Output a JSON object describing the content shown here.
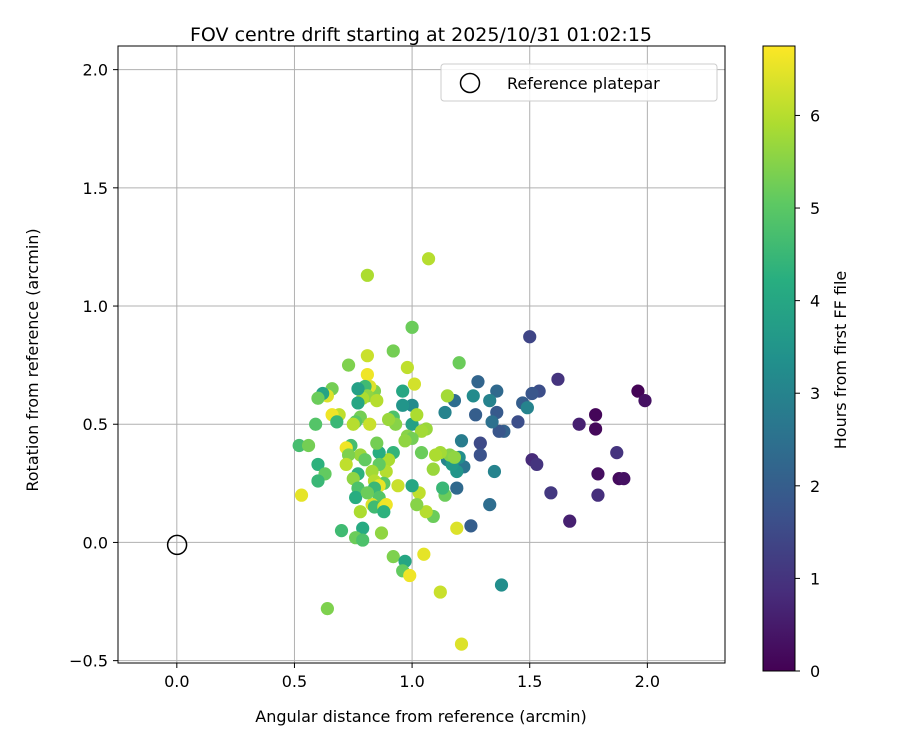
{
  "chart_data": {
    "type": "scatter",
    "title": "FOV centre drift starting at 2025/10/31 01:02:15",
    "xlabel": "Angular distance from reference (arcmin)",
    "ylabel": "Rotation from reference (arcmin)",
    "xlim": [
      -0.25,
      2.33
    ],
    "ylim": [
      -0.51,
      2.1
    ],
    "xticks": [
      0.0,
      0.5,
      1.0,
      1.5,
      2.0
    ],
    "xtick_labels": [
      "0.0",
      "0.5",
      "1.0",
      "1.5",
      "2.0"
    ],
    "yticks": [
      -0.5,
      0.0,
      0.5,
      1.0,
      1.5,
      2.0
    ],
    "ytick_labels": [
      "−0.5",
      "0.0",
      "0.5",
      "1.0",
      "1.5",
      "2.0"
    ],
    "grid": true,
    "legend": {
      "position": "top-right",
      "entries": [
        {
          "label": "Reference platepar",
          "marker": "open-circle"
        }
      ]
    },
    "reference_point": {
      "x": 0.0,
      "y": 0.0
    },
    "colorbar": {
      "label": "Hours from first FF file",
      "colormap": "viridis",
      "range": [
        0,
        6.75
      ],
      "ticks": [
        0,
        1,
        2,
        3,
        4,
        5,
        6
      ],
      "tick_labels": [
        "0",
        "1",
        "2",
        "3",
        "4",
        "5",
        "6"
      ]
    },
    "points": [
      {
        "x": 1.96,
        "y": 0.64,
        "t": 0.05
      },
      {
        "x": 1.99,
        "y": 0.6,
        "t": 0.3
      },
      {
        "x": 1.78,
        "y": 0.54,
        "t": 0.1
      },
      {
        "x": 1.78,
        "y": 0.48,
        "t": 0.15
      },
      {
        "x": 1.71,
        "y": 0.5,
        "t": 0.6
      },
      {
        "x": 1.88,
        "y": 0.27,
        "t": 0.2
      },
      {
        "x": 1.9,
        "y": 0.27,
        "t": 0.3
      },
      {
        "x": 1.79,
        "y": 0.29,
        "t": 0.25
      },
      {
        "x": 1.87,
        "y": 0.38,
        "t": 1.0
      },
      {
        "x": 1.79,
        "y": 0.2,
        "t": 0.9
      },
      {
        "x": 1.67,
        "y": 0.09,
        "t": 0.6
      },
      {
        "x": 1.59,
        "y": 0.21,
        "t": 1.1
      },
      {
        "x": 1.62,
        "y": 0.69,
        "t": 1.0
      },
      {
        "x": 1.5,
        "y": 0.87,
        "t": 1.4
      },
      {
        "x": 1.51,
        "y": 0.35,
        "t": 0.8
      },
      {
        "x": 1.53,
        "y": 0.33,
        "t": 1.0
      },
      {
        "x": 1.54,
        "y": 0.64,
        "t": 1.6
      },
      {
        "x": 1.51,
        "y": 0.63,
        "t": 1.8
      },
      {
        "x": 1.47,
        "y": 0.59,
        "t": 2.0
      },
      {
        "x": 1.49,
        "y": 0.57,
        "t": 3.0
      },
      {
        "x": 1.45,
        "y": 0.51,
        "t": 1.6
      },
      {
        "x": 1.39,
        "y": 0.47,
        "t": 2.1
      },
      {
        "x": 1.36,
        "y": 0.64,
        "t": 2.3
      },
      {
        "x": 1.36,
        "y": 0.55,
        "t": 1.9
      },
      {
        "x": 1.37,
        "y": 0.47,
        "t": 1.8
      },
      {
        "x": 1.34,
        "y": 0.51,
        "t": 2.5
      },
      {
        "x": 1.33,
        "y": 0.6,
        "t": 3.0
      },
      {
        "x": 1.28,
        "y": 0.68,
        "t": 2.2
      },
      {
        "x": 1.27,
        "y": 0.54,
        "t": 2.0
      },
      {
        "x": 1.26,
        "y": 0.62,
        "t": 3.2
      },
      {
        "x": 1.29,
        "y": 0.42,
        "t": 1.5
      },
      {
        "x": 1.29,
        "y": 0.37,
        "t": 1.7
      },
      {
        "x": 1.35,
        "y": 0.3,
        "t": 3.0
      },
      {
        "x": 1.33,
        "y": 0.16,
        "t": 2.4
      },
      {
        "x": 1.25,
        "y": 0.07,
        "t": 2.0
      },
      {
        "x": 1.38,
        "y": -0.18,
        "t": 3.3
      },
      {
        "x": 1.21,
        "y": 0.43,
        "t": 2.8
      },
      {
        "x": 1.22,
        "y": 0.32,
        "t": 2.6
      },
      {
        "x": 1.2,
        "y": 0.36,
        "t": 3.3
      },
      {
        "x": 1.19,
        "y": 0.3,
        "t": 3.5
      },
      {
        "x": 1.18,
        "y": 0.6,
        "t": 2.4
      },
      {
        "x": 1.19,
        "y": 0.23,
        "t": 2.3
      },
      {
        "x": 1.15,
        "y": 0.35,
        "t": 3.0
      },
      {
        "x": 1.17,
        "y": 0.33,
        "t": 3.6
      },
      {
        "x": 1.14,
        "y": 0.55,
        "t": 3.0
      },
      {
        "x": 1.2,
        "y": 0.76,
        "t": 5.2
      },
      {
        "x": 1.15,
        "y": 0.62,
        "t": 5.8
      },
      {
        "x": 1.16,
        "y": 0.37,
        "t": 5.5
      },
      {
        "x": 1.18,
        "y": 0.36,
        "t": 5.6
      },
      {
        "x": 1.14,
        "y": 0.2,
        "t": 5.2
      },
      {
        "x": 1.13,
        "y": 0.23,
        "t": 4.5
      },
      {
        "x": 1.12,
        "y": 0.38,
        "t": 5.8
      },
      {
        "x": 1.1,
        "y": 0.37,
        "t": 5.9
      },
      {
        "x": 1.09,
        "y": 0.31,
        "t": 5.7
      },
      {
        "x": 1.09,
        "y": 0.11,
        "t": 5.2
      },
      {
        "x": 1.06,
        "y": 0.13,
        "t": 6.0
      },
      {
        "x": 1.03,
        "y": 0.21,
        "t": 6.1
      },
      {
        "x": 1.02,
        "y": 0.16,
        "t": 5.5
      },
      {
        "x": 1.0,
        "y": 0.24,
        "t": 4.0
      },
      {
        "x": 1.07,
        "y": 1.2,
        "t": 6.0
      },
      {
        "x": 1.0,
        "y": 0.91,
        "t": 5.2
      },
      {
        "x": 1.01,
        "y": 0.67,
        "t": 6.3
      },
      {
        "x": 0.98,
        "y": 0.74,
        "t": 6.1
      },
      {
        "x": 0.96,
        "y": 0.64,
        "t": 4.0
      },
      {
        "x": 1.0,
        "y": 0.58,
        "t": 3.2
      },
      {
        "x": 0.96,
        "y": 0.58,
        "t": 3.5
      },
      {
        "x": 1.0,
        "y": 0.5,
        "t": 3.8
      },
      {
        "x": 1.02,
        "y": 0.54,
        "t": 5.9
      },
      {
        "x": 1.06,
        "y": 0.48,
        "t": 5.7
      },
      {
        "x": 1.04,
        "y": 0.47,
        "t": 5.8
      },
      {
        "x": 0.98,
        "y": 0.45,
        "t": 5.5
      },
      {
        "x": 1.0,
        "y": 0.44,
        "t": 5.3
      },
      {
        "x": 0.97,
        "y": 0.43,
        "t": 5.6
      },
      {
        "x": 1.04,
        "y": 0.38,
        "t": 5.2
      },
      {
        "x": 0.92,
        "y": 0.53,
        "t": 4.8
      },
      {
        "x": 0.93,
        "y": 0.5,
        "t": 5.5
      },
      {
        "x": 0.9,
        "y": 0.52,
        "t": 5.7
      },
      {
        "x": 0.92,
        "y": 0.38,
        "t": 4.4
      },
      {
        "x": 0.9,
        "y": 0.35,
        "t": 5.9
      },
      {
        "x": 0.89,
        "y": 0.3,
        "t": 6.0
      },
      {
        "x": 0.88,
        "y": 0.25,
        "t": 5.0
      },
      {
        "x": 0.94,
        "y": 0.24,
        "t": 6.2
      },
      {
        "x": 0.86,
        "y": 0.38,
        "t": 4.2
      },
      {
        "x": 0.85,
        "y": 0.42,
        "t": 5.3
      },
      {
        "x": 0.86,
        "y": 0.33,
        "t": 5.1
      },
      {
        "x": 0.83,
        "y": 0.3,
        "t": 5.8
      },
      {
        "x": 0.84,
        "y": 0.26,
        "t": 6.0
      },
      {
        "x": 0.86,
        "y": 0.24,
        "t": 6.5
      },
      {
        "x": 0.84,
        "y": 0.23,
        "t": 4.5
      },
      {
        "x": 0.86,
        "y": 0.19,
        "t": 4.9
      },
      {
        "x": 0.83,
        "y": 0.16,
        "t": 6.4
      },
      {
        "x": 0.84,
        "y": 0.15,
        "t": 4.6
      },
      {
        "x": 0.88,
        "y": 0.15,
        "t": 6.3
      },
      {
        "x": 0.89,
        "y": 0.16,
        "t": 6.6
      },
      {
        "x": 0.88,
        "y": 0.13,
        "t": 4.3
      },
      {
        "x": 0.92,
        "y": 0.81,
        "t": 5.3
      },
      {
        "x": 0.81,
        "y": 1.13,
        "t": 5.9
      },
      {
        "x": 0.81,
        "y": 0.79,
        "t": 6.2
      },
      {
        "x": 0.81,
        "y": 0.71,
        "t": 6.6
      },
      {
        "x": 0.84,
        "y": 0.64,
        "t": 5.4
      },
      {
        "x": 0.82,
        "y": 0.66,
        "t": 6.4
      },
      {
        "x": 0.8,
        "y": 0.66,
        "t": 4.6
      },
      {
        "x": 0.81,
        "y": 0.62,
        "t": 5.6
      },
      {
        "x": 0.85,
        "y": 0.6,
        "t": 6.0
      },
      {
        "x": 0.79,
        "y": 0.61,
        "t": 5.9
      },
      {
        "x": 0.77,
        "y": 0.65,
        "t": 3.8
      },
      {
        "x": 0.77,
        "y": 0.59,
        "t": 4.0
      },
      {
        "x": 0.78,
        "y": 0.53,
        "t": 5.3
      },
      {
        "x": 0.82,
        "y": 0.5,
        "t": 6.2
      },
      {
        "x": 0.76,
        "y": 0.51,
        "t": 5.0
      },
      {
        "x": 0.75,
        "y": 0.5,
        "t": 6.0
      },
      {
        "x": 0.73,
        "y": 0.75,
        "t": 5.4
      },
      {
        "x": 0.66,
        "y": 0.65,
        "t": 5.3
      },
      {
        "x": 0.64,
        "y": 0.62,
        "t": 6.4
      },
      {
        "x": 0.62,
        "y": 0.63,
        "t": 3.9
      },
      {
        "x": 0.6,
        "y": 0.61,
        "t": 5.2
      },
      {
        "x": 0.69,
        "y": 0.54,
        "t": 6.1
      },
      {
        "x": 0.66,
        "y": 0.54,
        "t": 6.6
      },
      {
        "x": 0.68,
        "y": 0.51,
        "t": 4.5
      },
      {
        "x": 0.59,
        "y": 0.5,
        "t": 4.9
      },
      {
        "x": 0.74,
        "y": 0.41,
        "t": 4.7
      },
      {
        "x": 0.72,
        "y": 0.4,
        "t": 6.6
      },
      {
        "x": 0.78,
        "y": 0.37,
        "t": 5.7
      },
      {
        "x": 0.73,
        "y": 0.37,
        "t": 5.4
      },
      {
        "x": 0.72,
        "y": 0.33,
        "t": 6.1
      },
      {
        "x": 0.77,
        "y": 0.29,
        "t": 4.3
      },
      {
        "x": 0.75,
        "y": 0.27,
        "t": 5.6
      },
      {
        "x": 0.8,
        "y": 0.35,
        "t": 5.1
      },
      {
        "x": 0.77,
        "y": 0.23,
        "t": 4.8
      },
      {
        "x": 0.76,
        "y": 0.19,
        "t": 4.2
      },
      {
        "x": 0.81,
        "y": 0.21,
        "t": 5.2
      },
      {
        "x": 0.78,
        "y": 0.13,
        "t": 5.9
      },
      {
        "x": 0.79,
        "y": 0.06,
        "t": 4.1
      },
      {
        "x": 0.7,
        "y": 0.05,
        "t": 4.6
      },
      {
        "x": 0.76,
        "y": 0.02,
        "t": 5.2
      },
      {
        "x": 0.79,
        "y": 0.01,
        "t": 4.8
      },
      {
        "x": 0.87,
        "y": 0.04,
        "t": 5.6
      },
      {
        "x": 0.64,
        "y": -0.28,
        "t": 5.4
      },
      {
        "x": 0.52,
        "y": 0.41,
        "t": 4.7
      },
      {
        "x": 0.56,
        "y": 0.41,
        "t": 5.3
      },
      {
        "x": 0.6,
        "y": 0.33,
        "t": 4.3
      },
      {
        "x": 0.63,
        "y": 0.29,
        "t": 5.1
      },
      {
        "x": 0.6,
        "y": 0.26,
        "t": 4.5
      },
      {
        "x": 0.53,
        "y": 0.2,
        "t": 6.5
      },
      {
        "x": 0.92,
        "y": -0.06,
        "t": 5.4
      },
      {
        "x": 0.97,
        "y": -0.08,
        "t": 4.0
      },
      {
        "x": 0.96,
        "y": -0.12,
        "t": 5.1
      },
      {
        "x": 0.99,
        "y": -0.14,
        "t": 6.6
      },
      {
        "x": 1.05,
        "y": -0.05,
        "t": 6.5
      },
      {
        "x": 1.12,
        "y": -0.21,
        "t": 6.2
      },
      {
        "x": 1.21,
        "y": -0.43,
        "t": 6.4
      },
      {
        "x": 1.19,
        "y": 0.06,
        "t": 6.4
      }
    ]
  }
}
